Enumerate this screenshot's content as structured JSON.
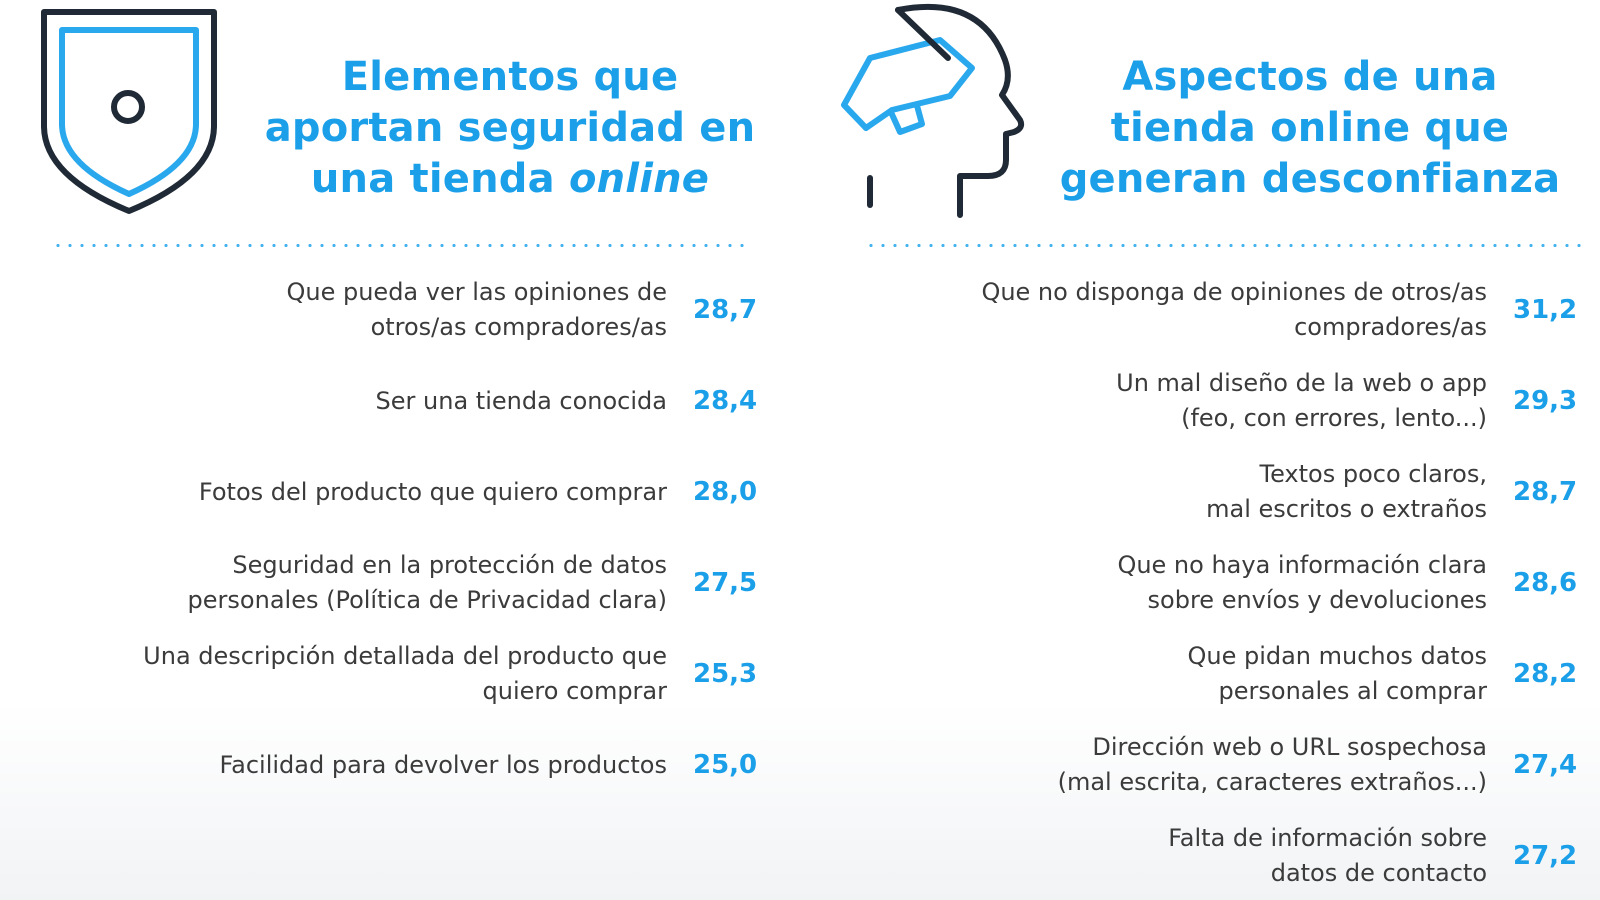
{
  "left": {
    "title_line1": "Elementos que",
    "title_line2": "aportan seguridad en",
    "title_line3_a": "una tienda ",
    "title_line3_em": "online",
    "icon": "shield-icon",
    "items": [
      {
        "line1": "Que pueda ver las opiniones de",
        "line2": "otros/as compradores/as",
        "value": "28,7"
      },
      {
        "line1": "Ser una tienda conocida",
        "line2": "",
        "value": "28,4"
      },
      {
        "line1": "Fotos del producto que quiero comprar",
        "line2": "",
        "value": "28,0"
      },
      {
        "line1": "Seguridad en la protección de datos",
        "line2": "personales (Política de Privacidad clara)",
        "value": "27,5"
      },
      {
        "line1": "Una descripción detallada del producto que",
        "line2": "quiero comprar",
        "value": "25,3"
      },
      {
        "line1": "Facilidad para devolver los productos",
        "line2": "",
        "value": "25,0"
      }
    ]
  },
  "right": {
    "title_line1": "Aspectos de una",
    "title_line2": "tienda online que",
    "title_line3": "generan desconfianza",
    "icon": "head-megaphone-icon",
    "items": [
      {
        "line1": "Que no disponga de opiniones de otros/as",
        "line2": "compradores/as",
        "value": "31,2"
      },
      {
        "line1": "Un mal diseño de la web o app",
        "line2": "(feo, con errores, lento...)",
        "value": "29,3"
      },
      {
        "line1": "Textos poco claros,",
        "line2": "mal escritos o extraños",
        "value": "28,7"
      },
      {
        "line1": "Que no haya información clara",
        "line2": "sobre envíos y devoluciones",
        "value": "28,6"
      },
      {
        "line1": "Que pidan muchos datos",
        "line2": "personales al comprar",
        "value": "28,2"
      },
      {
        "line1": "Dirección web o URL sospechosa",
        "line2": "(mal escrita, caracteres extraños...)",
        "value": "27,4"
      },
      {
        "line1": "Falta de información sobre",
        "line2": "datos de contacto",
        "value": "27,2"
      }
    ]
  },
  "colors": {
    "accent": "#1a9fe8",
    "text": "#3b3b3b",
    "icon_dark": "#1f2a36"
  }
}
